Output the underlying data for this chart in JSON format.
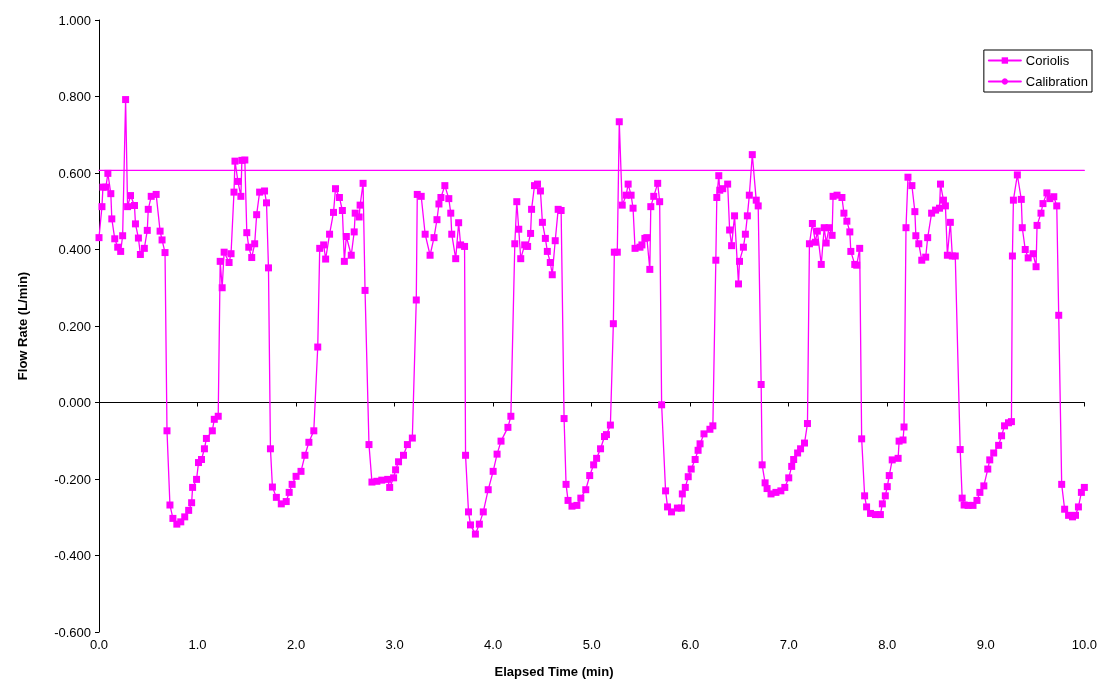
{
  "chart_data": {
    "type": "line",
    "xlabel": "Elapsed Time (min)",
    "ylabel": "Flow Rate (L/min)",
    "xlim": [
      0,
      10
    ],
    "ylim": [
      -0.6,
      1.0
    ],
    "xticks": [
      {
        "value": 0,
        "label": "0.0"
      },
      {
        "value": 1,
        "label": "1.0"
      },
      {
        "value": 2,
        "label": "2.0"
      },
      {
        "value": 3,
        "label": "3.0"
      },
      {
        "value": 4,
        "label": "4.0"
      },
      {
        "value": 5,
        "label": "5.0"
      },
      {
        "value": 6,
        "label": "6.0"
      },
      {
        "value": 7,
        "label": "7.0"
      },
      {
        "value": 8,
        "label": "8.0"
      },
      {
        "value": 9,
        "label": "9.0"
      },
      {
        "value": 10,
        "label": "10.0"
      }
    ],
    "yticks": [
      {
        "value": -0.6,
        "label": "-0.600"
      },
      {
        "value": -0.4,
        "label": "-0.400"
      },
      {
        "value": -0.2,
        "label": "-0.200"
      },
      {
        "value": 0,
        "label": "0.000"
      },
      {
        "value": 0.2,
        "label": "0.200"
      },
      {
        "value": 0.4,
        "label": "0.400"
      },
      {
        "value": 0.6,
        "label": "0.600"
      },
      {
        "value": 0.8,
        "label": "0.800"
      },
      {
        "value": 1.0,
        "label": "1.000"
      }
    ],
    "legend": "top right",
    "marker": "square",
    "line_style": "solid",
    "x": [
      0.0,
      0.03,
      0.04,
      0.07,
      0.09,
      0.12,
      0.13,
      0.16,
      0.19,
      0.22,
      0.24,
      0.27,
      0.29,
      0.32,
      0.36,
      0.37,
      0.4,
      0.42,
      0.46,
      0.49,
      0.5,
      0.53,
      0.58,
      0.62,
      0.64,
      0.67,
      0.69,
      0.72,
      0.75,
      0.79,
      0.83,
      0.87,
      0.91,
      0.94,
      0.95,
      0.99,
      1.01,
      1.04,
      1.07,
      1.09,
      1.15,
      1.17,
      1.21,
      1.23,
      1.25,
      1.27,
      1.32,
      1.34,
      1.37,
      1.38,
      1.41,
      1.44,
      1.45,
      1.48,
      1.5,
      1.52,
      1.55,
      1.58,
      1.6,
      1.63,
      1.68,
      1.7,
      1.72,
      1.74,
      1.76,
      1.8,
      1.85,
      1.9,
      1.93,
      1.96,
      2.0,
      2.05,
      2.09,
      2.13,
      2.18,
      2.22,
      2.24,
      2.28,
      2.3,
      2.34,
      2.38,
      2.4,
      2.44,
      2.47,
      2.49,
      2.51,
      2.56,
      2.59,
      2.6,
      2.64,
      2.65,
      2.68,
      2.7,
      2.74,
      2.77,
      2.82,
      2.87,
      2.93,
      2.95,
      2.99,
      3.01,
      3.04,
      3.09,
      3.13,
      3.18,
      3.22,
      3.23,
      3.27,
      3.31,
      3.36,
      3.4,
      3.43,
      3.45,
      3.47,
      3.51,
      3.55,
      3.57,
      3.58,
      3.62,
      3.65,
      3.67,
      3.71,
      3.72,
      3.75,
      3.77,
      3.82,
      3.86,
      3.9,
      3.95,
      4.0,
      4.04,
      4.08,
      4.15,
      4.18,
      4.22,
      4.24,
      4.26,
      4.28,
      4.32,
      4.35,
      4.38,
      4.39,
      4.42,
      4.45,
      4.48,
      4.5,
      4.53,
      4.55,
      4.58,
      4.6,
      4.63,
      4.66,
      4.69,
      4.72,
      4.74,
      4.76,
      4.8,
      4.85,
      4.89,
      4.94,
      4.98,
      5.02,
      5.05,
      5.09,
      5.13,
      5.15,
      5.19,
      5.22,
      5.23,
      5.26,
      5.28,
      5.31,
      5.35,
      5.37,
      5.4,
      5.42,
      5.44,
      5.49,
      5.51,
      5.54,
      5.56,
      5.59,
      5.6,
      5.63,
      5.67,
      5.69,
      5.71,
      5.75,
      5.77,
      5.81,
      5.87,
      5.91,
      5.92,
      5.95,
      5.98,
      6.01,
      6.05,
      6.08,
      6.1,
      6.14,
      6.2,
      6.23,
      6.26,
      6.27,
      6.29,
      6.3,
      6.33,
      6.38,
      6.4,
      6.42,
      6.45,
      6.49,
      6.5,
      6.54,
      6.56,
      6.58,
      6.6,
      6.63,
      6.67,
      6.69,
      6.72,
      6.73,
      6.76,
      6.78,
      6.82,
      6.87,
      6.92,
      6.96,
      7.0,
      7.03,
      7.05,
      7.09,
      7.12,
      7.16,
      7.19,
      7.21,
      7.24,
      7.27,
      7.29,
      7.33,
      7.36,
      7.38,
      7.41,
      7.44,
      7.45,
      7.49,
      7.54,
      7.56,
      7.59,
      7.62,
      7.63,
      7.67,
      7.69,
      7.72,
      7.74,
      7.77,
      7.79,
      7.83,
      7.88,
      7.93,
      7.95,
      7.98,
      8.0,
      8.02,
      8.05,
      8.11,
      8.12,
      8.16,
      8.17,
      8.19,
      8.21,
      8.25,
      8.28,
      8.29,
      8.32,
      8.35,
      8.39,
      8.41,
      8.45,
      8.49,
      8.53,
      8.54,
      8.57,
      8.59,
      8.61,
      8.64,
      8.66,
      8.69,
      8.74,
      8.76,
      8.78,
      8.82,
      8.87,
      8.91,
      8.94,
      8.98,
      9.02,
      9.04,
      9.08,
      9.13,
      9.16,
      9.19,
      9.23,
      9.26,
      9.27,
      9.28,
      9.32,
      9.36,
      9.37,
      9.4,
      9.43,
      9.48,
      9.51,
      9.52,
      9.56,
      9.58,
      9.62,
      9.65,
      9.69,
      9.72,
      9.74,
      9.77,
      9.8,
      9.84,
      9.88,
      9.91,
      9.94,
      9.97,
      10.0
    ],
    "series": [
      {
        "name": "Coriolis",
        "color": "#ff00ff",
        "values": [
          0.431,
          0.512,
          0.563,
          0.563,
          0.599,
          0.546,
          0.48,
          0.428,
          0.406,
          0.395,
          0.436,
          0.792,
          0.512,
          0.541,
          0.515,
          0.467,
          0.43,
          0.387,
          0.403,
          0.45,
          0.505,
          0.539,
          0.544,
          0.448,
          0.425,
          0.392,
          -0.074,
          -0.268,
          -0.303,
          -0.318,
          -0.312,
          -0.299,
          -0.282,
          -0.262,
          -0.222,
          -0.201,
          -0.157,
          -0.149,
          -0.121,
          -0.094,
          -0.074,
          -0.044,
          -0.036,
          0.369,
          0.3,
          0.393,
          0.366,
          0.389,
          0.55,
          0.631,
          0.578,
          0.539,
          0.633,
          0.634,
          0.444,
          0.406,
          0.379,
          0.415,
          0.491,
          0.55,
          0.553,
          0.522,
          0.352,
          -0.121,
          -0.221,
          -0.248,
          -0.265,
          -0.259,
          -0.235,
          -0.214,
          -0.193,
          -0.18,
          -0.138,
          -0.104,
          -0.074,
          0.145,
          0.403,
          0.412,
          0.375,
          0.44,
          0.497,
          0.559,
          0.536,
          0.502,
          0.369,
          0.434,
          0.385,
          0.446,
          0.495,
          0.485,
          0.516,
          0.573,
          0.293,
          -0.11,
          -0.208,
          -0.206,
          -0.203,
          -0.201,
          -0.222,
          -0.197,
          -0.176,
          -0.155,
          -0.138,
          -0.11,
          -0.093,
          0.268,
          0.544,
          0.539,
          0.44,
          0.385,
          0.431,
          0.478,
          0.519,
          0.536,
          0.567,
          0.533,
          0.495,
          0.44,
          0.376,
          0.47,
          0.412,
          0.408,
          -0.138,
          -0.286,
          -0.32,
          -0.344,
          -0.318,
          -0.286,
          -0.228,
          -0.18,
          -0.135,
          -0.101,
          -0.065,
          -0.036,
          0.415,
          0.525,
          0.453,
          0.376,
          0.412,
          0.408,
          0.442,
          0.505,
          0.567,
          0.571,
          0.553,
          0.471,
          0.429,
          0.395,
          0.366,
          0.334,
          0.423,
          0.505,
          0.502,
          -0.042,
          -0.214,
          -0.256,
          -0.271,
          -0.269,
          -0.25,
          -0.228,
          -0.191,
          -0.163,
          -0.146,
          -0.121,
          -0.089,
          -0.084,
          -0.059,
          0.206,
          0.393,
          0.393,
          0.734,
          0.516,
          0.542,
          0.571,
          0.542,
          0.508,
          0.403,
          0.406,
          0.412,
          0.429,
          0.431,
          0.348,
          0.512,
          0.539,
          0.573,
          0.525,
          -0.006,
          -0.231,
          -0.273,
          -0.286,
          -0.276,
          -0.276,
          -0.239,
          -0.222,
          -0.194,
          -0.174,
          -0.149,
          -0.125,
          -0.108,
          -0.082,
          -0.07,
          -0.061,
          0.372,
          0.536,
          0.593,
          0.555,
          0.559,
          0.571,
          0.451,
          0.41,
          0.488,
          0.31,
          0.369,
          0.406,
          0.44,
          0.488,
          0.542,
          0.648,
          0.529,
          0.514,
          0.047,
          -0.163,
          -0.21,
          -0.225,
          -0.239,
          -0.235,
          -0.231,
          -0.222,
          -0.197,
          -0.167,
          -0.149,
          -0.132,
          -0.121,
          -0.106,
          -0.055,
          0.415,
          0.468,
          0.419,
          0.448,
          0.361,
          0.457,
          0.417,
          0.457,
          0.437,
          0.539,
          0.542,
          0.536,
          0.495,
          0.474,
          0.446,
          0.395,
          0.361,
          0.359,
          0.403,
          -0.095,
          -0.244,
          -0.273,
          -0.29,
          -0.293,
          -0.293,
          -0.265,
          -0.244,
          -0.22,
          -0.191,
          -0.15,
          -0.146,
          -0.101,
          -0.098,
          -0.064,
          0.457,
          0.589,
          0.567,
          0.499,
          0.436,
          0.415,
          0.372,
          0.38,
          0.431,
          0.495,
          0.503,
          0.508,
          0.571,
          0.529,
          0.514,
          0.385,
          0.471,
          0.383,
          0.383,
          -0.123,
          -0.25,
          -0.268,
          -0.269,
          -0.269,
          -0.256,
          -0.235,
          -0.218,
          -0.174,
          -0.15,
          -0.132,
          -0.112,
          -0.087,
          -0.061,
          -0.053,
          -0.05,
          0.383,
          0.529,
          0.595,
          0.531,
          0.457,
          0.4,
          0.378,
          0.389,
          0.355,
          0.463,
          0.495,
          0.52,
          0.548,
          0.533,
          0.538,
          0.514,
          0.228,
          -0.214,
          -0.279,
          -0.295,
          -0.299,
          -0.295,
          -0.273,
          -0.235,
          -0.222
        ]
      },
      {
        "name": "Calibration",
        "color": "#ff00ff",
        "marker": "none",
        "x": [
          0,
          10
        ],
        "values": [
          0.607,
          0.607
        ]
      }
    ]
  }
}
